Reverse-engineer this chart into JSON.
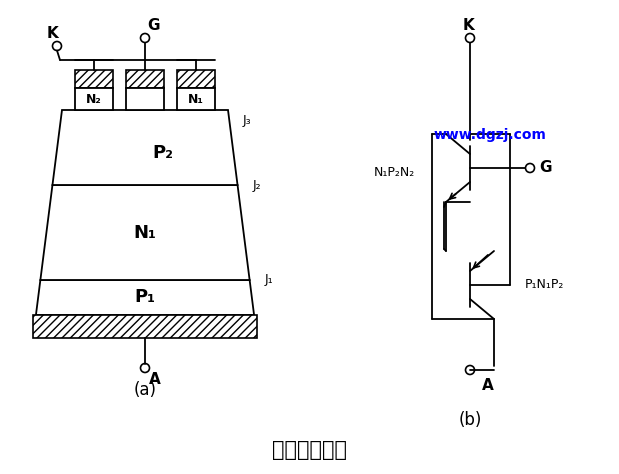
{
  "title": "晶闸管的结构",
  "title_fontsize": 15,
  "watermark": "www.dgzj.com",
  "watermark_color": "#0000FF",
  "background_color": "#FFFFFF",
  "label_a": "(a)",
  "label_b": "(b)",
  "labels": {
    "K": "K",
    "G": "G",
    "A": "A",
    "J1": "J₁",
    "J2": "J₂",
    "J3": "J₃",
    "N1_sub": "N₁",
    "N2_sub": "N₂",
    "P1_sub": "P₁",
    "P2_sub": "P₂",
    "N1P2N2": "N₁P₂N₂",
    "P1N1P2": "P₁N₁P₂"
  }
}
